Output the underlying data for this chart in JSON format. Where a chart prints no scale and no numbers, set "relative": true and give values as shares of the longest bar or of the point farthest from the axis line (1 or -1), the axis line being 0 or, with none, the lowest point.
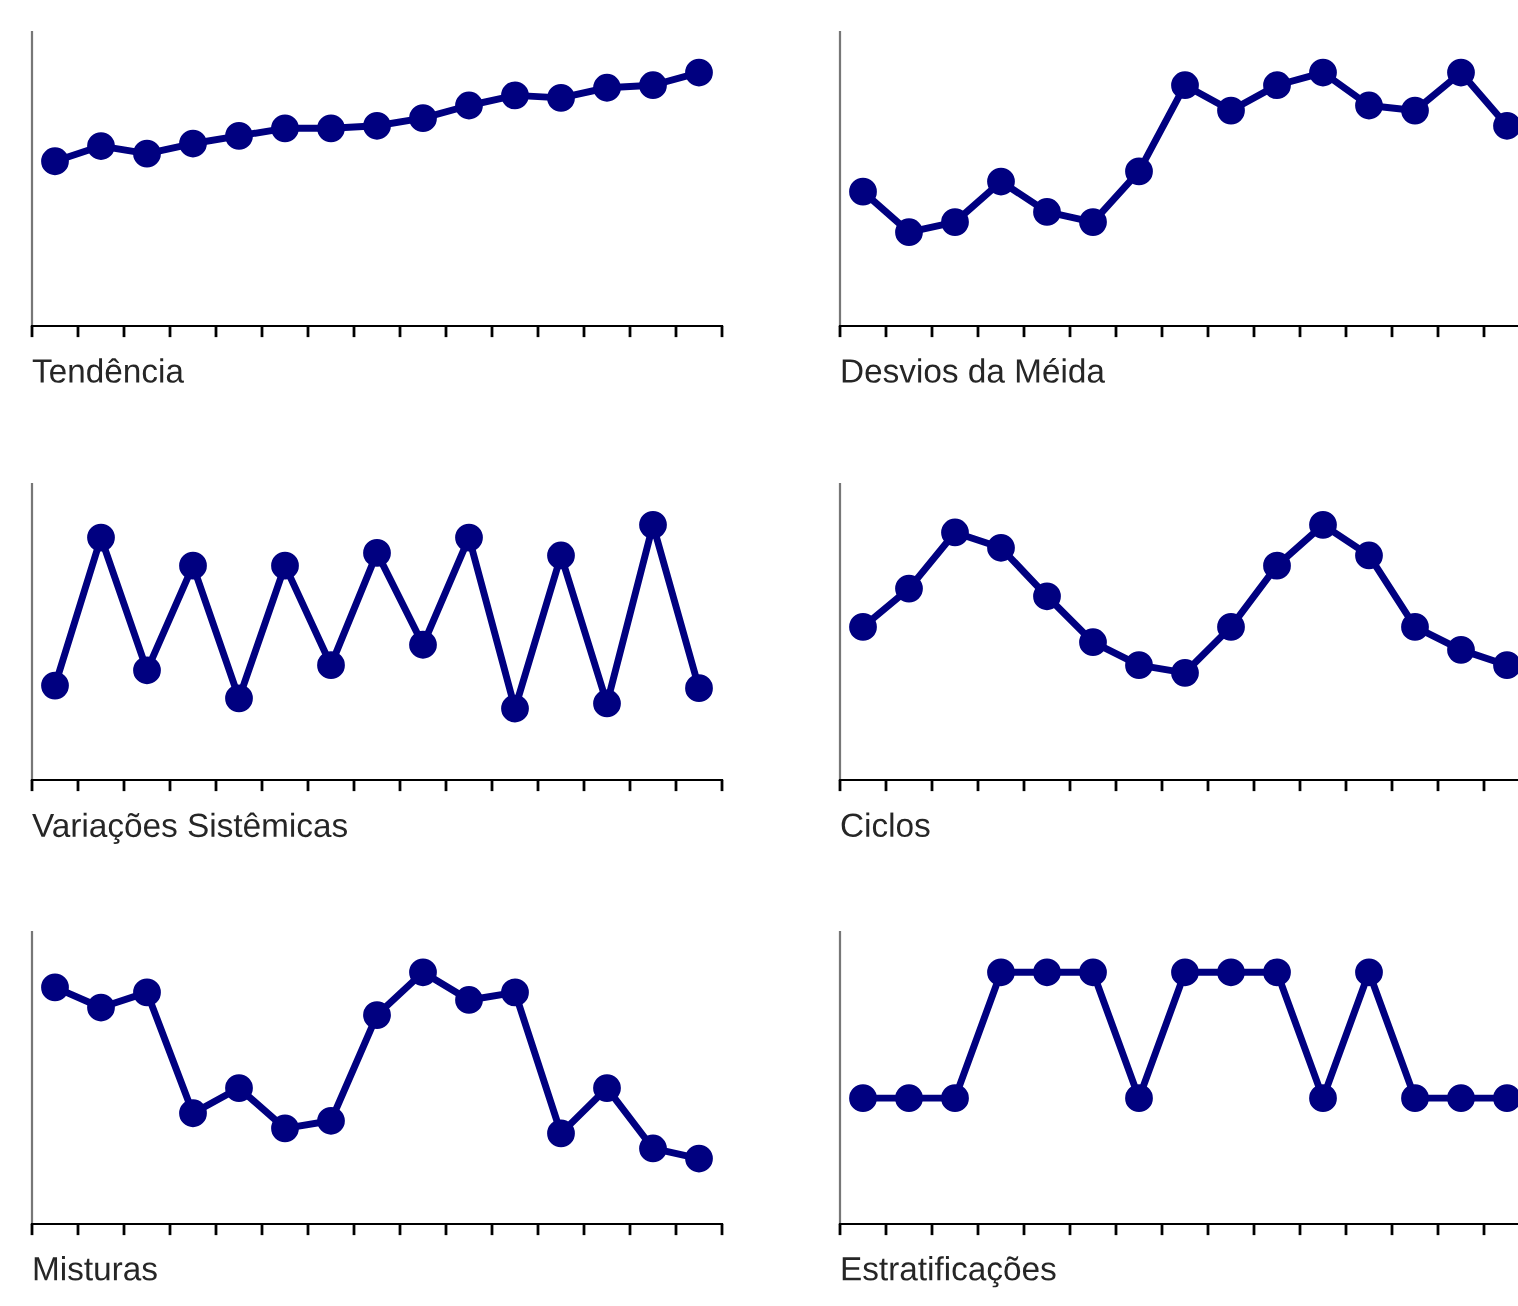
{
  "chart_data": [
    {
      "type": "line",
      "title": "Tendência",
      "categories": [
        null,
        null,
        null,
        null,
        null,
        null,
        null,
        null,
        null,
        null,
        null,
        null,
        null,
        null,
        null
      ],
      "relative": true,
      "marker": "circle",
      "series": [
        {
          "color": "#000080",
          "values": [
            0.65,
            0.71,
            0.68,
            0.72,
            0.75,
            0.78,
            0.78,
            0.79,
            0.82,
            0.87,
            0.91,
            0.9,
            0.94,
            0.95,
            1
          ]
        }
      ]
    },
    {
      "type": "line",
      "title": "Desvios da Méida",
      "categories": [
        null,
        null,
        null,
        null,
        null,
        null,
        null,
        null,
        null,
        null,
        null,
        null,
        null,
        null,
        null
      ],
      "relative": true,
      "marker": "circle",
      "series": [
        {
          "color": "#000080",
          "values": [
            0.53,
            0.37,
            0.41,
            0.57,
            0.45,
            0.41,
            0.61,
            0.95,
            0.85,
            0.95,
            1,
            0.87,
            0.85,
            1,
            0.79
          ]
        }
      ]
    },
    {
      "type": "line",
      "title": "Variações Sistêmicas",
      "categories": [
        null,
        null,
        null,
        null,
        null,
        null,
        null,
        null,
        null,
        null,
        null,
        null,
        null,
        null,
        null
      ],
      "relative": true,
      "marker": "circle",
      "series": [
        {
          "color": "#000080",
          "values": [
            0.37,
            0.95,
            0.43,
            0.84,
            0.32,
            0.84,
            0.45,
            0.89,
            0.53,
            0.95,
            0.28,
            0.88,
            0.3,
            1,
            0.36
          ]
        }
      ]
    },
    {
      "type": "line",
      "title": "Ciclos",
      "categories": [
        null,
        null,
        null,
        null,
        null,
        null,
        null,
        null,
        null,
        null,
        null,
        null,
        null,
        null,
        null
      ],
      "relative": true,
      "marker": "circle",
      "series": [
        {
          "color": "#000080",
          "values": [
            0.6,
            0.75,
            0.97,
            0.91,
            0.72,
            0.54,
            0.45,
            0.42,
            0.6,
            0.84,
            1,
            0.88,
            0.6,
            0.51,
            0.45
          ]
        }
      ]
    },
    {
      "type": "line",
      "title": "Misturas",
      "categories": [
        null,
        null,
        null,
        null,
        null,
        null,
        null,
        null,
        null,
        null,
        null,
        null,
        null,
        null,
        null
      ],
      "relative": true,
      "marker": "circle",
      "series": [
        {
          "color": "#000080",
          "values": [
            0.94,
            0.86,
            0.92,
            0.44,
            0.54,
            0.38,
            0.41,
            0.83,
            1,
            0.89,
            0.92,
            0.36,
            0.54,
            0.3,
            0.26
          ]
        }
      ]
    },
    {
      "type": "line",
      "title": "Estratificações",
      "categories": [
        null,
        null,
        null,
        null,
        null,
        null,
        null,
        null,
        null,
        null,
        null,
        null,
        null,
        null,
        null
      ],
      "relative": true,
      "marker": "circle",
      "series": [
        {
          "color": "#000080",
          "values": [
            0.5,
            0.5,
            0.5,
            1,
            1,
            1,
            0.5,
            1,
            1,
            1,
            0.5,
            1,
            0.5,
            0.5,
            0.5
          ]
        }
      ]
    }
  ]
}
